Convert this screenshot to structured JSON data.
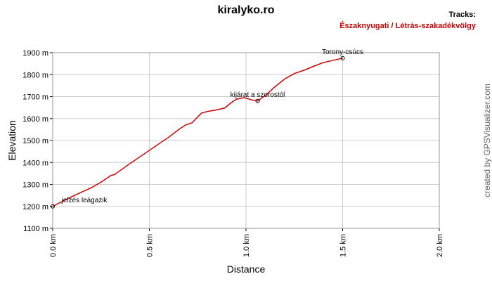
{
  "chart_data": {
    "type": "line",
    "title": "kiralyko.ro",
    "legend_title": "Tracks:",
    "x_label": "Distance",
    "y_label": "Elevation",
    "credit": "created by GPSVisualizer.com",
    "x": [
      0,
      0.1,
      0.2,
      0.25,
      0.3,
      0.32,
      0.4,
      0.5,
      0.6,
      0.66,
      0.69,
      0.72,
      0.77,
      0.8,
      0.85,
      0.89,
      0.92,
      0.95,
      0.99,
      1.03,
      1.06,
      1.1,
      1.15,
      1.2,
      1.25,
      1.3,
      1.35,
      1.4,
      1.45,
      1.5
    ],
    "series": [
      {
        "name": "Északnyugati / Létrás-szakadékvölgy",
        "color": "#cc0000",
        "values": [
          1200,
          1245,
          1285,
          1310,
          1340,
          1345,
          1395,
          1455,
          1515,
          1555,
          1572,
          1580,
          1625,
          1632,
          1640,
          1648,
          1670,
          1688,
          1695,
          1685,
          1680,
          1705,
          1745,
          1780,
          1805,
          1820,
          1838,
          1855,
          1865,
          1875
        ]
      }
    ],
    "waypoints": [
      {
        "name": "jelzés leágazik",
        "x": 0,
        "y": 1200
      },
      {
        "name": "kijárat a szorostól",
        "x": 1.06,
        "y": 1680
      },
      {
        "name": "Torony-csúcs",
        "x": 1.5,
        "y": 1875
      }
    ],
    "xlim": [
      0,
      2.0
    ],
    "xticks": [
      {
        "value": 0,
        "label": "0.0 km"
      },
      {
        "value": 0.5,
        "label": "0.5 km"
      },
      {
        "value": 1.0,
        "label": "1.0 km"
      },
      {
        "value": 1.5,
        "label": "1.5 km"
      },
      {
        "value": 2.0,
        "label": "2.0 km"
      }
    ],
    "ylim": [
      1100,
      1900
    ],
    "yticks": [
      {
        "value": 1100,
        "label": "1100 m"
      },
      {
        "value": 1200,
        "label": "1200 m"
      },
      {
        "value": 1300,
        "label": "1300 m"
      },
      {
        "value": 1400,
        "label": "1400 m"
      },
      {
        "value": 1500,
        "label": "1500 m"
      },
      {
        "value": 1600,
        "label": "1600 m"
      },
      {
        "value": 1700,
        "label": "1700 m"
      },
      {
        "value": 1800,
        "label": "1800 m"
      },
      {
        "value": 1900,
        "label": "1900 m"
      }
    ],
    "grid": true
  }
}
